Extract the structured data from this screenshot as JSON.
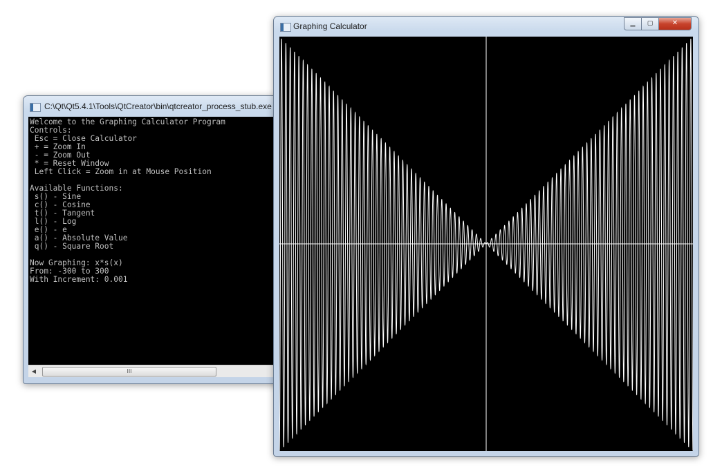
{
  "console": {
    "title": "C:\\Qt\\Qt5.4.1\\Tools\\QtCreator\\bin\\qtcreator_process_stub.exe",
    "lines": [
      "Welcome to the Graphing Calculator Program",
      "Controls:",
      " Esc = Close Calculator",
      " + = Zoom In",
      " - = Zoom Out",
      " * = Reset Window",
      " Left Click = Zoom in at Mouse Position",
      "",
      "Available Functions:",
      " s() - Sine",
      " c() - Cosine",
      " t() - Tangent",
      " l() - Log",
      " e() - e",
      " a() - Absolute Value",
      " q() - Square Root",
      "",
      "Now Graphing: x*s(x)",
      "From: -300 to 300",
      "With Increment: 0.001"
    ],
    "scroll_thumb_glyph": "III",
    "scroll_left_glyph": "◀",
    "scroll_right_glyph": "▶"
  },
  "graph_window": {
    "title": "Graphing Calculator",
    "min_glyph": "▁",
    "max_glyph": "▢",
    "close_glyph": "✕",
    "colors": {
      "background": "#000000",
      "curve": "#ffffff",
      "axes": "#ffffff"
    }
  },
  "chart_data": {
    "type": "line",
    "function": "x*s(x)",
    "x_range": [
      -300,
      300
    ],
    "y_range": [
      -300,
      300
    ],
    "increment": 0.001,
    "grid": false
  }
}
